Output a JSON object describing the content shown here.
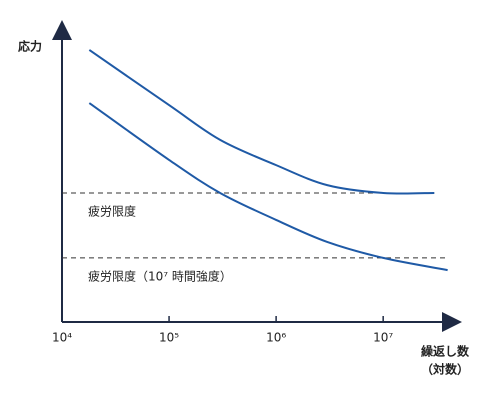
{
  "chart_data": {
    "type": "line",
    "y_label": "応力",
    "x_label": [
      "繰返し数",
      "（対数）"
    ],
    "xscale": "log",
    "xlim": [
      10000,
      50000000
    ],
    "xticks": [
      {
        "value": 10000,
        "label": "10⁴"
      },
      {
        "value": 100000,
        "label": "10⁵"
      },
      {
        "value": 1000000,
        "label": "10⁶"
      },
      {
        "value": 10000000,
        "label": "10⁷"
      }
    ],
    "ylim": [
      0,
      100
    ],
    "series": [
      {
        "color": "#1f5aa6",
        "x": [
          18000,
          100000,
          300000,
          1000000,
          3000000,
          10000000,
          30000000
        ],
        "values": [
          93.8,
          74.8,
          62.8,
          54.1,
          47.2,
          44.5,
          44.5
        ]
      },
      {
        "color": "#1f5aa6",
        "x": [
          18000,
          100000,
          300000,
          1000000,
          3000000,
          10000000,
          40000000
        ],
        "values": [
          75.5,
          55.9,
          44.5,
          35.2,
          27.6,
          22.1,
          17.9
        ]
      }
    ],
    "reference_lines": [
      {
        "value": 44.5,
        "label": "疲労限度"
      },
      {
        "value": 22.1,
        "label": "疲労限度（10⁷ 時間強度）"
      }
    ]
  }
}
